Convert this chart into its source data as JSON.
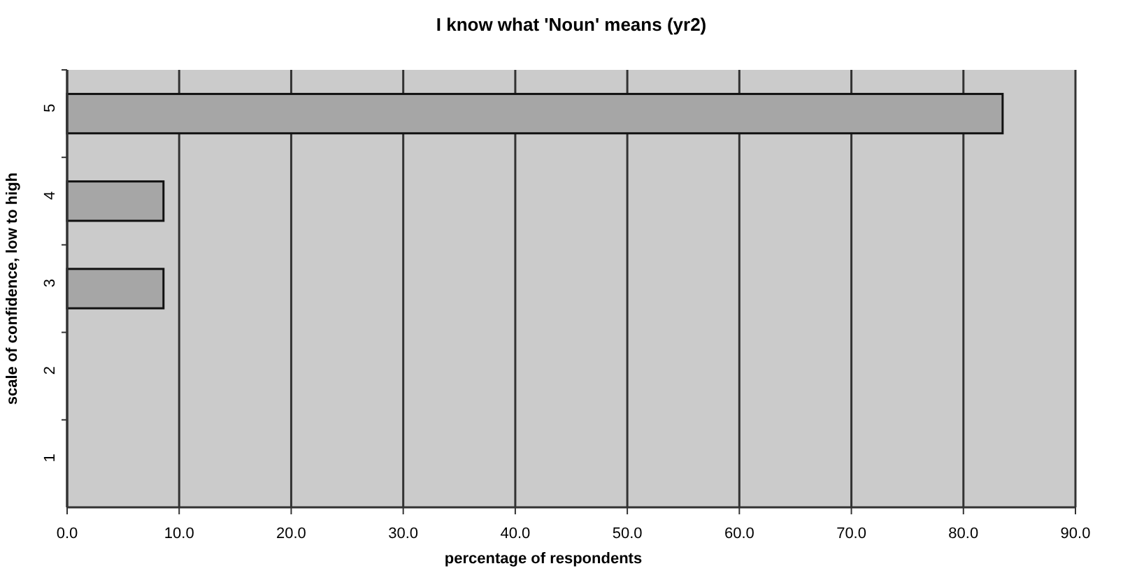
{
  "chart_data": {
    "type": "bar",
    "orientation": "horizontal",
    "title": "I know what 'Noun' means      (yr2)",
    "xlabel": "percentage of respondents",
    "ylabel": "scale of confidence, low to high",
    "categories": [
      "5",
      "4",
      "3",
      "2",
      "1"
    ],
    "values": [
      83.5,
      8.6,
      8.6,
      0,
      0
    ],
    "color": "#a6a6a6",
    "xlim": [
      0,
      90
    ],
    "xticks": [
      {
        "value": 0,
        "label": "0.0"
      },
      {
        "value": 10,
        "label": "10.0"
      },
      {
        "value": 20,
        "label": "20.0"
      },
      {
        "value": 30,
        "label": "30.0"
      },
      {
        "value": 40,
        "label": "40.0"
      },
      {
        "value": 50,
        "label": "50.0"
      },
      {
        "value": 60,
        "label": "60.0"
      },
      {
        "value": 70,
        "label": "70.0"
      },
      {
        "value": 80,
        "label": "80.0"
      },
      {
        "value": 90,
        "label": "90.0"
      }
    ],
    "grid": "x",
    "legend": false
  }
}
